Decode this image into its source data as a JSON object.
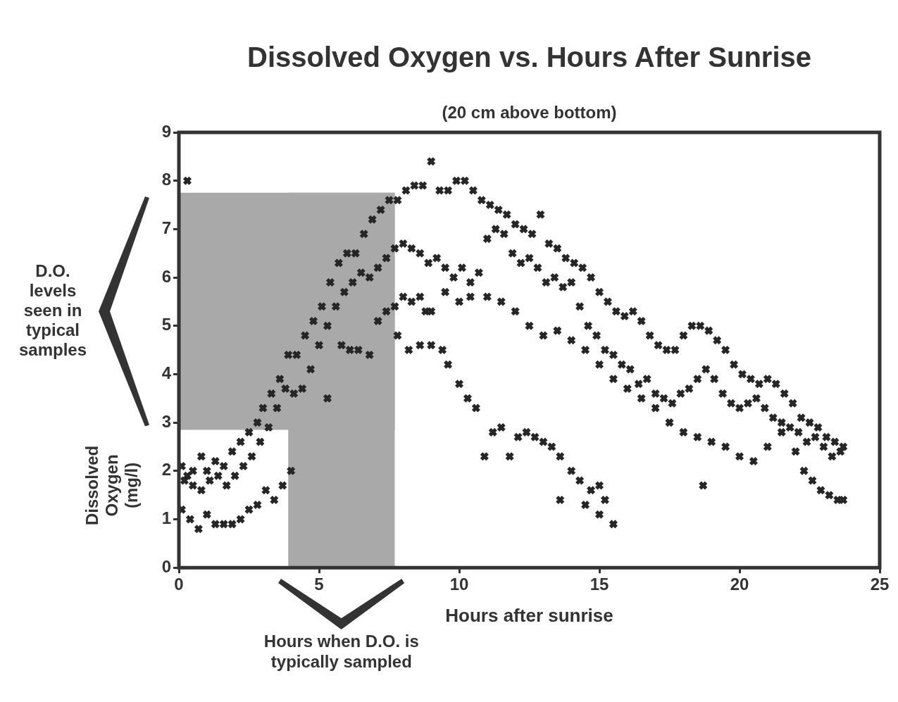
{
  "chart_data": {
    "type": "scatter",
    "title": "Dissolved Oxygen vs. Hours After Sunrise",
    "subtitle": "(20 cm above bottom)",
    "xlabel": "Hours after sunrise",
    "ylabel": "Dissolved Oxygen (mg/l)",
    "xlim": [
      0,
      25
    ],
    "xticks": [
      0,
      5,
      10,
      15,
      20,
      25
    ],
    "ylim": [
      0,
      9
    ],
    "yticks": [
      0,
      1,
      2,
      3,
      4,
      5,
      6,
      7,
      8,
      9
    ],
    "grid": false,
    "legend": false,
    "marker": "cross",
    "annotations": [
      "D.O. levels seen in typical samples",
      "Hours when D.O. is typically sampled"
    ],
    "bands": [
      {
        "axis": "y",
        "from": 2.85,
        "to": 7.75,
        "color": "#a9a9a9"
      },
      {
        "axis": "x",
        "from": 3.9,
        "to": 7.7,
        "color": "#a9a9a9"
      }
    ],
    "series": [
      {
        "color": "#262626",
        "x": [
          0.1,
          0.3,
          0.5,
          0.8,
          1.0,
          1.3,
          1.6,
          1.9,
          2.2,
          2.5,
          2.8,
          3.0,
          3.3,
          3.6,
          3.9,
          4.2,
          4.5,
          4.8,
          5.1,
          5.4,
          5.7,
          6.0,
          6.3,
          6.6,
          6.9,
          7.2,
          7.5,
          7.8,
          8.1,
          8.4,
          8.7,
          9.0,
          9.3,
          9.6,
          9.9,
          10.2,
          10.5,
          10.8,
          11.1,
          11.4,
          11.7,
          12.0,
          12.3,
          12.6,
          12.9,
          13.2,
          13.5,
          13.8,
          14.1,
          14.4,
          14.7,
          15.0,
          15.3,
          15.6,
          15.9,
          16.2,
          16.5,
          16.8,
          17.1,
          17.4,
          17.7,
          18.0,
          18.3,
          18.6,
          18.9,
          19.2,
          19.5,
          19.8,
          20.1,
          20.4,
          20.7,
          21.0,
          21.3,
          21.6,
          21.9,
          22.2,
          22.5,
          22.8,
          23.1,
          23.4,
          23.7,
          0.2,
          0.5,
          0.8,
          1.1,
          1.4,
          1.7,
          2.0,
          2.3,
          2.6,
          2.9,
          3.2,
          3.5,
          3.8,
          4.1,
          4.4,
          4.7,
          5.0,
          5.3,
          5.6,
          5.9,
          6.2,
          6.5,
          6.8,
          7.1,
          7.4,
          7.7,
          8.0,
          8.3,
          8.6,
          8.9,
          9.2,
          9.5,
          9.8,
          10.1,
          10.4,
          10.7,
          11.0,
          11.3,
          11.6,
          11.9,
          12.2,
          12.5,
          12.8,
          13.1,
          13.4,
          13.7,
          14.0,
          14.3,
          14.6,
          14.9,
          15.2,
          15.5,
          15.8,
          16.1,
          16.4,
          16.7,
          17.0,
          17.3,
          17.6,
          17.9,
          18.2,
          18.5,
          18.8,
          19.1,
          19.4,
          19.7,
          20.0,
          20.3,
          20.6,
          20.9,
          21.2,
          21.5,
          21.8,
          22.1,
          22.4,
          22.7,
          23.0,
          23.3,
          23.6,
          0.1,
          0.4,
          0.7,
          1.0,
          1.3,
          1.6,
          1.9,
          2.2,
          2.5,
          2.8,
          3.1,
          3.4,
          3.7,
          4.0,
          5.8,
          6.1,
          6.4,
          6.8,
          7.1,
          7.4,
          7.7,
          8.0,
          8.3,
          8.6,
          9.0,
          9.5,
          10.0,
          10.4,
          11.0,
          11.5,
          12.0,
          12.5,
          13.0,
          13.5,
          14.0,
          14.5,
          15.0,
          15.5,
          16.0,
          16.5,
          17.0,
          17.5,
          18.0,
          18.5,
          19.0,
          19.5,
          20.0,
          20.5,
          21.0,
          21.5,
          22.0,
          22.3,
          22.6,
          22.9,
          23.2,
          23.5,
          23.7,
          7.8,
          8.2,
          8.6,
          9.0,
          9.4,
          9.6,
          10.0,
          10.3,
          10.6,
          10.9,
          11.2,
          11.5,
          11.8,
          12.1,
          12.4,
          12.7,
          13.0,
          13.3,
          13.6,
          13.6,
          14.0,
          14.3,
          14.5,
          14.7,
          15.0,
          15.2,
          15.0,
          15.5,
          18.7,
          8.8,
          5.3,
          0.3
        ],
        "values": [
          2.1,
          1.9,
          2.0,
          2.3,
          2.0,
          2.2,
          2.1,
          2.4,
          2.6,
          2.8,
          3.0,
          3.3,
          3.6,
          3.9,
          4.4,
          4.4,
          4.8,
          5.1,
          5.4,
          5.9,
          6.3,
          6.5,
          6.5,
          6.9,
          7.2,
          7.4,
          7.6,
          7.6,
          7.8,
          7.9,
          7.9,
          8.4,
          7.8,
          7.8,
          8.0,
          8.0,
          7.8,
          7.6,
          7.5,
          7.4,
          7.3,
          7.1,
          7.0,
          6.9,
          7.3,
          6.7,
          6.6,
          6.4,
          6.3,
          6.2,
          6.0,
          5.7,
          5.5,
          5.3,
          5.2,
          5.3,
          5.1,
          4.8,
          4.6,
          4.5,
          4.5,
          4.8,
          5.0,
          5.0,
          4.9,
          4.7,
          4.5,
          4.2,
          4.0,
          3.9,
          3.8,
          3.9,
          3.8,
          3.6,
          3.4,
          3.1,
          3.0,
          2.9,
          2.7,
          2.6,
          2.5,
          1.8,
          1.7,
          1.6,
          1.8,
          1.9,
          1.7,
          1.9,
          2.1,
          2.3,
          2.6,
          2.9,
          3.3,
          3.7,
          3.6,
          3.7,
          4.1,
          4.6,
          5.0,
          5.4,
          5.7,
          5.9,
          6.1,
          6.0,
          6.2,
          6.4,
          6.6,
          6.7,
          6.6,
          6.5,
          6.3,
          6.4,
          6.2,
          6.0,
          6.2,
          5.9,
          6.1,
          6.8,
          7.0,
          6.9,
          6.5,
          6.3,
          6.4,
          6.2,
          5.9,
          6.0,
          5.8,
          5.9,
          5.4,
          5.0,
          4.8,
          4.5,
          4.4,
          4.2,
          4.1,
          3.8,
          3.9,
          3.6,
          3.5,
          3.4,
          3.6,
          3.7,
          3.9,
          4.1,
          3.9,
          3.6,
          3.4,
          3.3,
          3.4,
          3.5,
          3.3,
          3.1,
          3.0,
          2.9,
          2.8,
          2.6,
          2.7,
          2.5,
          2.3,
          2.4,
          1.2,
          1.0,
          0.8,
          1.1,
          0.9,
          0.9,
          0.9,
          1.0,
          1.2,
          1.3,
          1.6,
          1.4,
          1.7,
          2.0,
          4.6,
          4.5,
          4.5,
          4.4,
          5.1,
          5.3,
          5.4,
          5.6,
          5.5,
          5.6,
          5.3,
          5.7,
          5.5,
          5.6,
          5.6,
          5.5,
          5.3,
          5.0,
          4.8,
          4.9,
          4.7,
          4.5,
          4.2,
          3.9,
          3.7,
          3.5,
          3.3,
          3.0,
          2.8,
          2.7,
          2.6,
          2.5,
          2.3,
          2.2,
          2.5,
          2.8,
          2.4,
          2.0,
          1.8,
          1.6,
          1.5,
          1.4,
          1.4,
          4.8,
          4.5,
          4.6,
          4.6,
          4.5,
          4.2,
          3.8,
          3.5,
          3.3,
          2.3,
          2.8,
          2.9,
          2.3,
          2.7,
          2.8,
          2.7,
          2.6,
          2.5,
          2.3,
          1.4,
          2.0,
          1.8,
          1.3,
          1.6,
          1.7,
          1.4,
          1.1,
          0.9,
          1.7,
          5.3,
          3.5,
          8.0
        ]
      }
    ]
  }
}
